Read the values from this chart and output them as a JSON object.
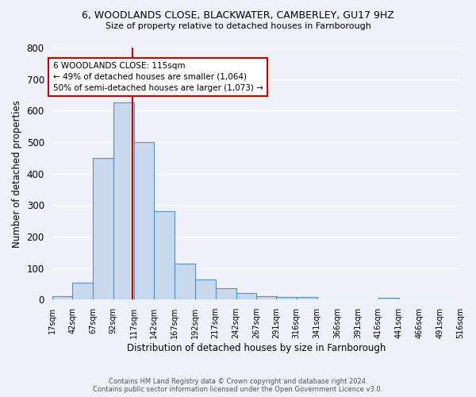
{
  "title_line1": "6, WOODLANDS CLOSE, BLACKWATER, CAMBERLEY, GU17 9HZ",
  "title_line2": "Size of property relative to detached houses in Farnborough",
  "xlabel": "Distribution of detached houses by size in Farnborough",
  "ylabel": "Number of detached properties",
  "bin_edges": [
    17,
    42,
    67,
    92,
    117,
    142,
    167,
    192,
    217,
    242,
    267,
    291,
    316,
    341,
    366,
    391,
    416,
    441,
    466,
    491,
    516
  ],
  "bar_heights": [
    10,
    55,
    450,
    625,
    500,
    280,
    115,
    65,
    35,
    22,
    10,
    8,
    8,
    0,
    0,
    0,
    7,
    0,
    0,
    0
  ],
  "bar_color": "#c9d9ed",
  "bar_edge_color": "#5a8fc3",
  "vline_x": 115,
  "vline_color": "#cc0000",
  "annotation_line1": "6 WOODLANDS CLOSE: 115sqm",
  "annotation_line2": "← 49% of detached houses are smaller (1,064)",
  "annotation_line3": "50% of semi-detached houses are larger (1,073) →",
  "ylim": [
    0,
    800
  ],
  "yticks": [
    0,
    100,
    200,
    300,
    400,
    500,
    600,
    700,
    800
  ],
  "background_color": "#eef2f8",
  "grid_color": "#ffffff",
  "footer_line1": "Contains HM Land Registry data © Crown copyright and database right 2024.",
  "footer_line2": "Contains public sector information licensed under the Open Government Licence v3.0."
}
